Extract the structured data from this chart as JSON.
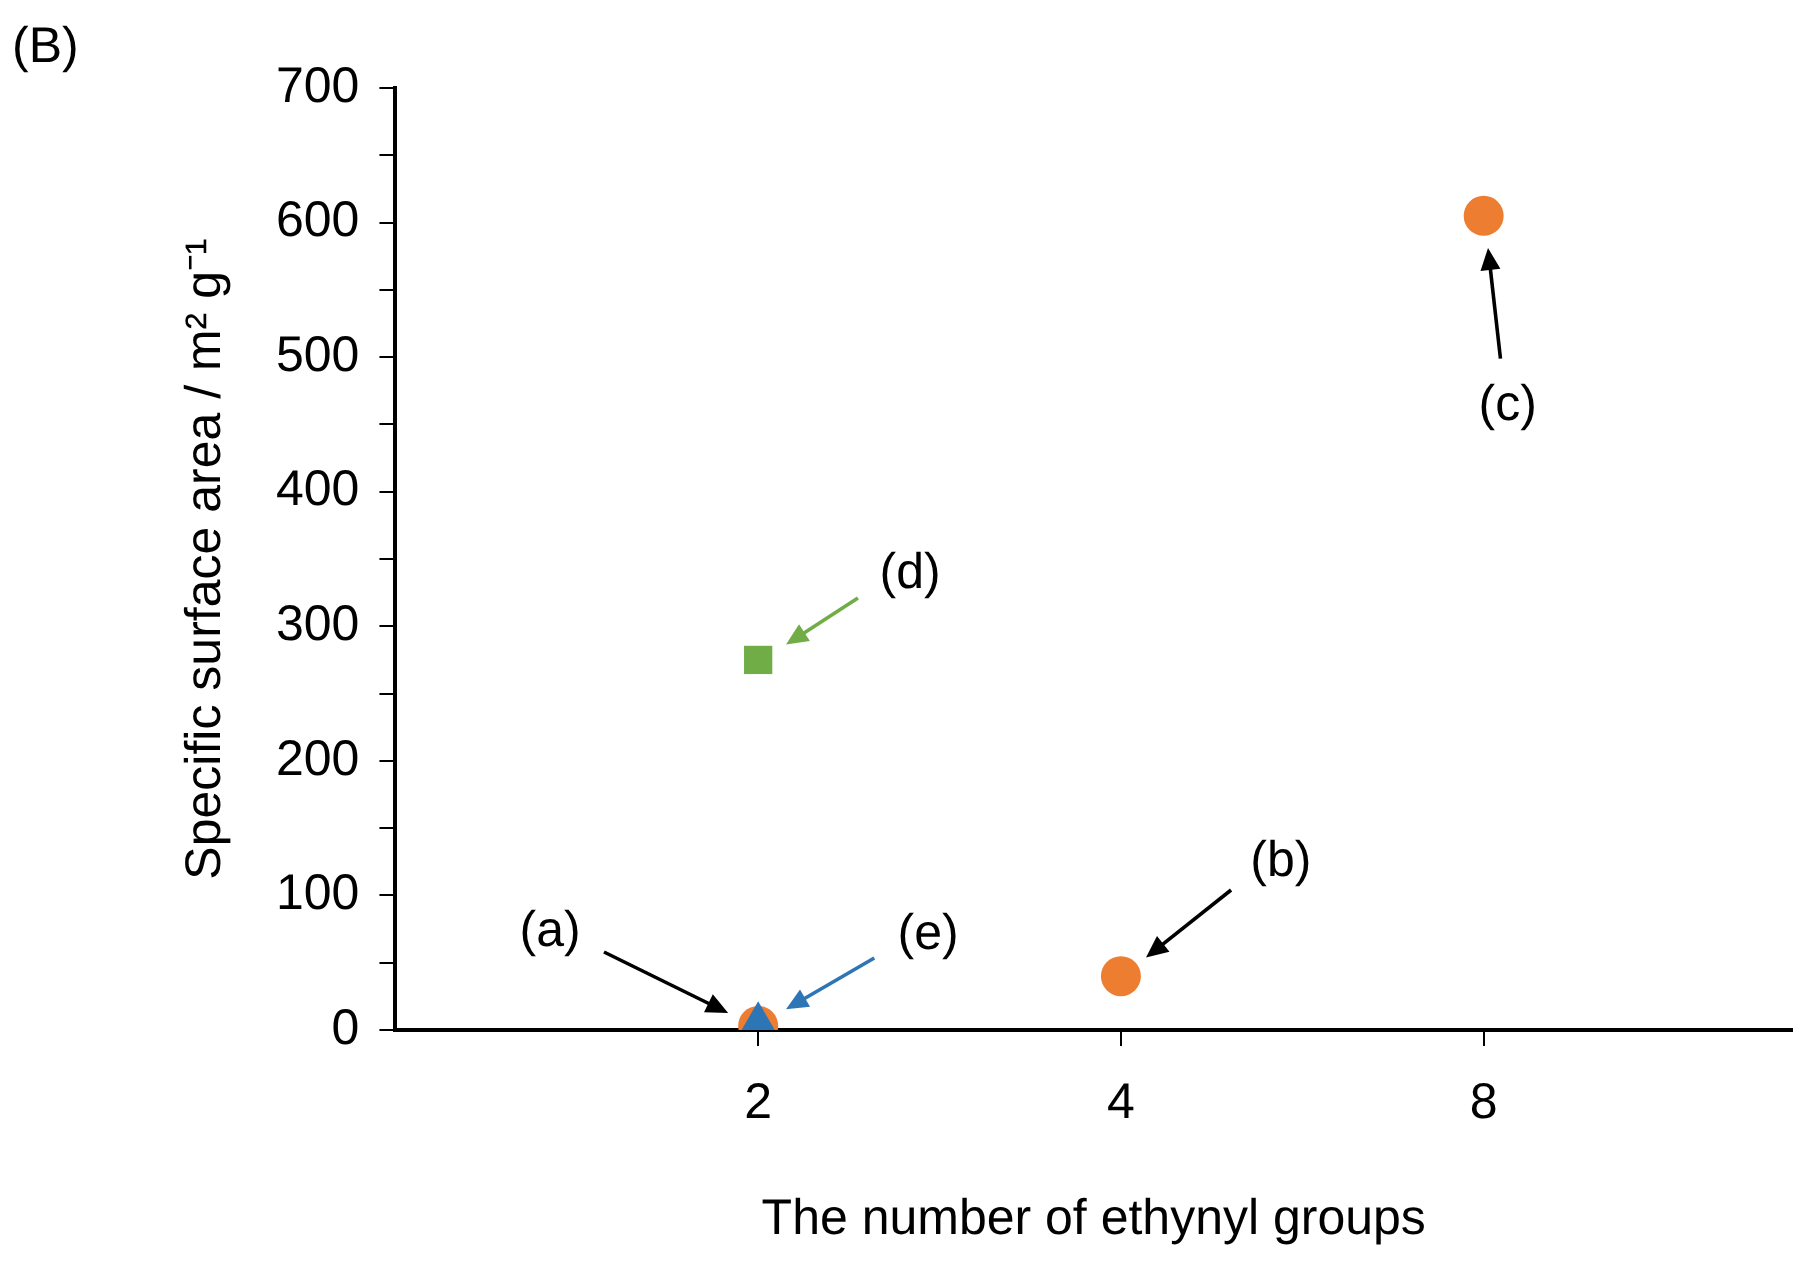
{
  "chart_data": {
    "type": "scatter",
    "xlabel": "The number of ethynyl groups",
    "ylabel": "Specific surface area / m² g⁻¹",
    "categories": [
      "2",
      "4",
      "8"
    ],
    "series": [
      {
        "type": "scatter",
        "marker": "circle",
        "color": "#ed7d31",
        "x": [
          "2",
          "4",
          "8"
        ],
        "values": [
          3,
          40,
          605
        ]
      },
      {
        "type": "scatter",
        "marker": "square",
        "color": "#70ad47",
        "x": [
          "2"
        ],
        "values": [
          275
        ]
      },
      {
        "type": "scatter",
        "marker": "triangle",
        "color": "#2e75b6",
        "x": [
          "2"
        ],
        "values": [
          5
        ]
      }
    ],
    "ylim": [
      0,
      700
    ],
    "yticks": [
      0,
      {
        "value": 50,
        "label": null
      },
      100,
      {
        "value": 150,
        "label": null
      },
      200,
      {
        "value": 250,
        "label": null
      },
      300,
      {
        "value": 350,
        "label": null
      },
      400,
      {
        "value": 450,
        "label": null
      },
      500,
      {
        "value": 550,
        "label": null
      },
      600,
      {
        "value": 650,
        "label": null
      },
      700
    ],
    "grid": false,
    "legend": false,
    "annotations": [
      "(B)",
      "(a)",
      "(b)",
      "(c)",
      "(d)",
      "(e)"
    ]
  }
}
